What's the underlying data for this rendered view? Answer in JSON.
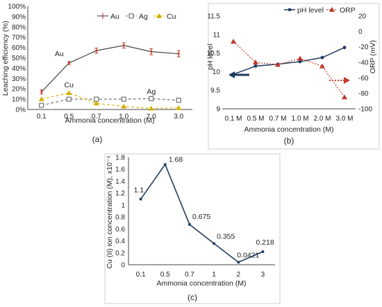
{
  "chart_data": [
    {
      "type": "line",
      "panel_label": "(a)",
      "xlabel": "Ammonia concentration (M)",
      "ylabel": "Leaching efficiency (%)",
      "categories": [
        "0.1",
        "0.5",
        "0.7",
        "1.0",
        "2.0",
        "3.0"
      ],
      "ylim": [
        0,
        100
      ],
      "yticks": [
        "0%",
        "10%",
        "20%",
        "30%",
        "40%",
        "50%",
        "60%",
        "70%",
        "80%",
        "90%",
        "100%"
      ],
      "grid": false,
      "legend": "top-right",
      "series": [
        {
          "name": "Au",
          "values": [
            17,
            45,
            57,
            62,
            56,
            54
          ],
          "errors": [
            2,
            1.5,
            2.5,
            2.5,
            3,
            3
          ],
          "color": "#c0392b",
          "line": "#333333",
          "marker": "bar"
        },
        {
          "name": "Ag",
          "values": [
            4,
            10,
            10,
            10,
            10.5,
            9
          ],
          "color": "#555555",
          "line": "#666666",
          "marker": "square",
          "dash": true
        },
        {
          "name": "Cu",
          "values": [
            10,
            16,
            6,
            3,
            1,
            1.5
          ],
          "color": "#d4b000",
          "line": "#d4b000",
          "marker": "triangle",
          "dash": true
        }
      ],
      "annotations": [
        {
          "text": "Au",
          "series": "Au",
          "index": 1
        },
        {
          "text": "Cu",
          "series": "Cu",
          "index": 1
        },
        {
          "text": "Ag",
          "series": "Ag",
          "index": 4
        }
      ]
    },
    {
      "type": "line",
      "panel_label": "(b)",
      "xlabel": "Ammonia concentration (M)",
      "ylabel_left": "pH level",
      "ylabel_right": "ORP (mV)",
      "categories": [
        "0.1 M",
        "0.5 M",
        "0.7 M",
        "1.0 M",
        "2.0 M",
        "3.0 M"
      ],
      "ylim_left": [
        9,
        11.5
      ],
      "yticks_left": [
        "9",
        "9.5",
        "10",
        "10.5",
        "11",
        "11.5"
      ],
      "ylim_right": [
        -100,
        20
      ],
      "yticks_right": [
        "-100",
        "-80",
        "-60",
        "-40",
        "-20",
        "0",
        "20"
      ],
      "legend": "top-right",
      "series": [
        {
          "name": "pH level",
          "axis": "left",
          "values": [
            9.93,
            10.15,
            10.2,
            10.27,
            10.38,
            10.65
          ],
          "color": "#1f3a5f",
          "marker": "circle"
        },
        {
          "name": "ORP",
          "axis": "right",
          "values": [
            -13,
            -40,
            -43,
            -35,
            -45,
            -85
          ],
          "color": "#c0392b",
          "marker": "triangle",
          "dash": true
        }
      ]
    },
    {
      "type": "line",
      "panel_label": "(c)",
      "xlabel": "Ammonia concentration (M)",
      "ylabel": "Cu (II) ion concentration (M), x10⁻⁵",
      "categories": [
        "0.1",
        "0.5",
        "0.7",
        "1",
        "2",
        "3"
      ],
      "values": [
        1.1,
        1.68,
        0.675,
        0.355,
        0.0421,
        0.218
      ],
      "data_labels": [
        "1.1",
        "1.68",
        "0.675",
        "0.355",
        "0.0421",
        "0.218"
      ],
      "ylim": [
        0,
        1.8
      ],
      "yticks": [
        "0",
        "0.2",
        "0.4",
        "0.6",
        "0.8",
        "1",
        "1.2",
        "1.4",
        "1.6",
        "1.8"
      ],
      "color": "#1f3a5f"
    }
  ]
}
